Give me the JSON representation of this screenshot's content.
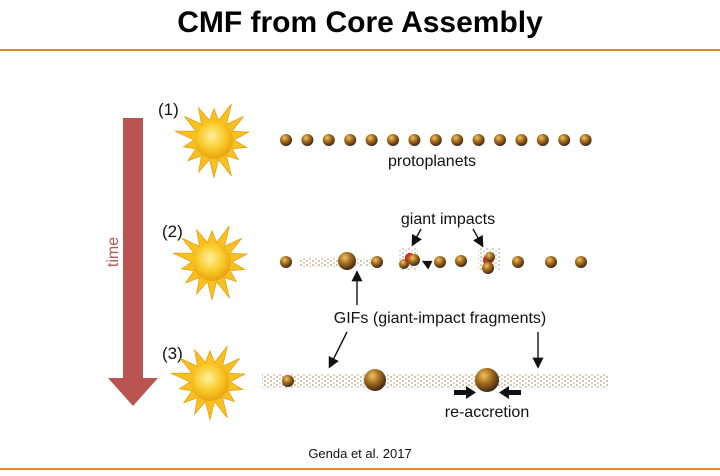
{
  "title": "CMF from Core Assembly",
  "time_label": "time",
  "stages": [
    "(1)",
    "(2)",
    "(3)"
  ],
  "labels": {
    "protoplanets": "protoplanets",
    "giant_impacts": "giant impacts",
    "gifs": "GIFs (giant-impact fragments)",
    "re_accretion": "re-accretion"
  },
  "citation": "Genda et al. 2017",
  "colors": {
    "accent": "#e8872a",
    "time_arrow": "#b95450",
    "sun": "#f5c21b",
    "protoplanet": "#8a5a1c",
    "impact": "#e8241c",
    "debris": "#b08a5a"
  }
}
